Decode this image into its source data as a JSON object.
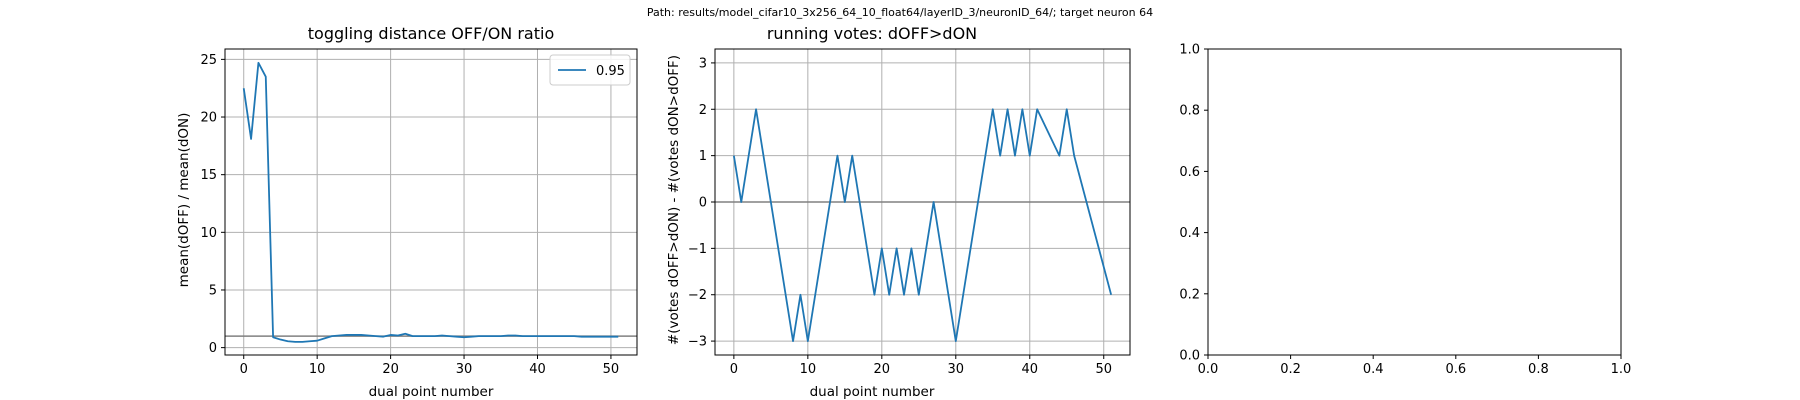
{
  "suptitle": "Path: results/model_cifar10_3x256_64_10_float64/layerID_3/neuronID_64/; target neuron 64",
  "chart_data": [
    {
      "type": "line",
      "title": "toggling distance OFF/ON ratio",
      "xlabel": "dual point number",
      "ylabel": "mean(dOFF) / mean(dON)",
      "xlim": [
        -2.55,
        53.55
      ],
      "ylim": [
        -0.64,
        25.9
      ],
      "xticks": [
        0,
        10,
        20,
        30,
        40,
        50
      ],
      "yticks": [
        0,
        5,
        10,
        15,
        20,
        25
      ],
      "grid": true,
      "legend": "upper right",
      "hline": 1,
      "series": [
        {
          "name": "0.95",
          "color": "#1f77b4",
          "x": [
            0,
            1,
            2,
            3,
            4,
            5,
            6,
            7,
            8,
            9,
            10,
            11,
            12,
            13,
            14,
            15,
            16,
            17,
            18,
            19,
            20,
            21,
            22,
            23,
            24,
            25,
            26,
            27,
            28,
            29,
            30,
            31,
            32,
            33,
            34,
            35,
            36,
            37,
            38,
            39,
            40,
            41,
            42,
            43,
            44,
            45,
            46,
            47,
            48,
            49,
            50,
            51
          ],
          "y": [
            22.5,
            18.1,
            24.7,
            23.5,
            0.9,
            0.7,
            0.55,
            0.5,
            0.5,
            0.55,
            0.6,
            0.8,
            1.0,
            1.05,
            1.1,
            1.1,
            1.1,
            1.05,
            1.0,
            0.95,
            1.1,
            1.05,
            1.2,
            1.0,
            1.0,
            1.0,
            1.0,
            1.05,
            1.0,
            0.95,
            0.9,
            0.95,
            1.0,
            1.0,
            1.0,
            1.0,
            1.05,
            1.05,
            1.0,
            1.0,
            1.0,
            1.0,
            1.0,
            1.0,
            1.0,
            1.0,
            0.95,
            0.95,
            0.95,
            0.95,
            0.95,
            0.95
          ]
        }
      ]
    },
    {
      "type": "line",
      "title": "running votes: dOFF>dON",
      "xlabel": "dual point number",
      "ylabel": "#(votes dOFF>dON) - #(votes dON>dOFF)",
      "xlim": [
        -2.55,
        53.55
      ],
      "ylim": [
        -3.3,
        3.3
      ],
      "xticks": [
        0,
        10,
        20,
        30,
        40,
        50
      ],
      "yticks": [
        -3,
        -2,
        -1,
        0,
        1,
        2,
        3
      ],
      "grid": true,
      "hline": 0,
      "series": [
        {
          "color": "#1f77b4",
          "x": [
            0,
            1,
            3,
            8,
            9,
            10,
            14,
            15,
            16,
            19,
            20,
            21,
            22,
            23,
            24,
            25,
            27,
            30,
            35,
            36,
            37,
            38,
            39,
            40,
            41,
            44,
            45,
            46,
            51
          ],
          "y": [
            1,
            0,
            2,
            -3,
            -2,
            -3,
            1,
            0,
            1,
            -2,
            -1,
            -2,
            -1,
            -2,
            -1,
            -2,
            0,
            -3,
            2,
            1,
            2,
            1,
            2,
            1,
            2,
            1,
            2,
            1,
            -2
          ]
        }
      ]
    },
    {
      "type": "line",
      "title": "",
      "xlabel": "",
      "ylabel": "",
      "xlim": [
        0,
        1
      ],
      "ylim": [
        0,
        1
      ],
      "xticks": [
        0.0,
        0.2,
        0.4,
        0.6,
        0.8,
        1.0
      ],
      "yticks": [
        0.0,
        0.2,
        0.4,
        0.6,
        0.8,
        1.0
      ],
      "grid": false,
      "series": []
    }
  ]
}
